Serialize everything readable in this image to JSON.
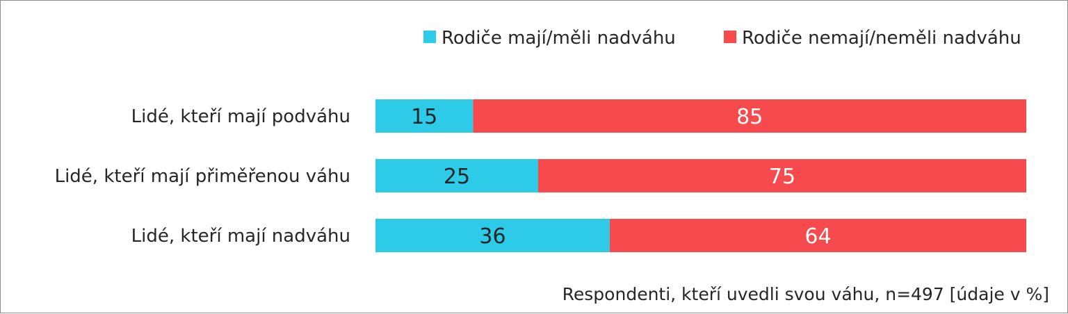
{
  "chart_data": {
    "type": "bar",
    "orientation": "horizontal",
    "stacked": true,
    "categories": [
      "Lidé, kteří mají podváhu",
      "Lidé, kteří mají přiměřenou váhu",
      "Lidé, kteří mají nadváhu"
    ],
    "series": [
      {
        "name": "Rodiče mají/měli nadváhu",
        "color": "#2ecbe8",
        "label_color": "#262626",
        "values": [
          15,
          25,
          36
        ]
      },
      {
        "name": "Rodiče nemají/neměli nadváhu",
        "color": "#f64a4c",
        "label_color": "#ffffff",
        "values": [
          85,
          75,
          64
        ]
      }
    ],
    "xlim": [
      0,
      100
    ],
    "legend_position": "top-right",
    "grid": false,
    "note": "Respondenti, kteří uvedli svou váhu, n=497 [údaje v %]"
  }
}
